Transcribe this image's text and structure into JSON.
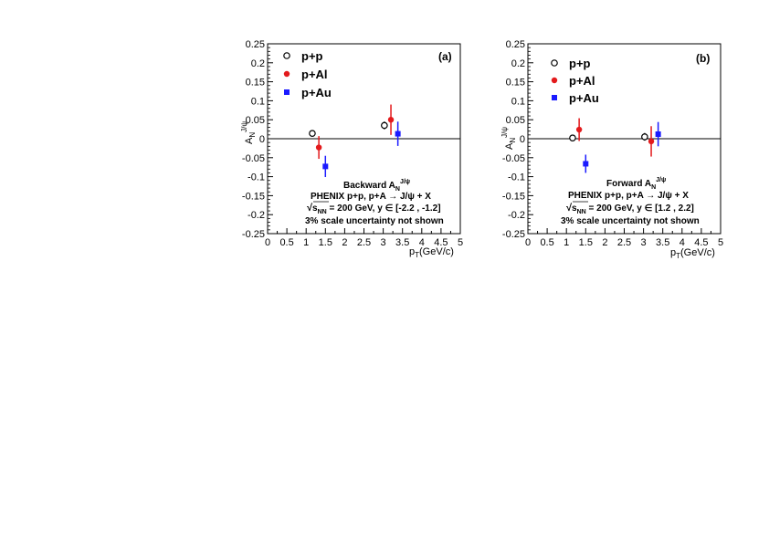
{
  "colors": {
    "pp": "#000000",
    "pAl": "#e31a1c",
    "pAu": "#1a1aff"
  },
  "axis_labels": {
    "x_main": "p",
    "x_sub": "T",
    "x_unit": "(GeV/c)",
    "y_main": "A",
    "y_sub": "N",
    "y_sup": "J/ψ"
  },
  "legend": [
    "p+p",
    "p+Al",
    "p+Au"
  ],
  "panels": [
    {
      "label": "(a)",
      "ann_title": "Backward A",
      "ann_sub": "N",
      "ann_sup": "J/ψ",
      "ann_line2": "PHENIX p+p, p+A → J/ψ + X",
      "ann_sqrt": "s",
      "ann_sqrt_sub": "NN",
      "ann_line3_rest": " = 200 GeV,  y ∈ [-2.2 , -1.2]",
      "ann_line4": "3% scale uncertainty not shown"
    },
    {
      "label": "(b)",
      "ann_title": "Forward A",
      "ann_sub": "N",
      "ann_sup": "J/ψ",
      "ann_line2": "PHENIX p+p, p+A → J/ψ + X",
      "ann_sqrt": "s",
      "ann_sqrt_sub": "NN",
      "ann_line3_rest": " = 200 GeV,  y ∈ [1.2 , 2.2]",
      "ann_line4": "3% scale uncertainty not shown"
    }
  ],
  "chart_data": [
    {
      "type": "scatter",
      "title": "(a)",
      "xlabel": "pT(GeV/c)",
      "ylabel": "AN J/ψ",
      "xlim": [
        0,
        5
      ],
      "ylim": [
        -0.25,
        0.25
      ],
      "xticks": [
        "0",
        "0.5",
        "1",
        "1.5",
        "2",
        "2.5",
        "3",
        "3.5",
        "4",
        "4.5",
        "5"
      ],
      "yticks": [
        "-0.25",
        "-0.2",
        "-0.15",
        "-0.1",
        "-0.05",
        "0",
        "0.05",
        "0.1",
        "0.15",
        "0.2",
        "0.25"
      ],
      "legend_position": "top-left",
      "series": [
        {
          "name": "p+p",
          "marker": "open-circle",
          "points": [
            {
              "x": 1.16,
              "y": 0.014,
              "err": 0.008
            },
            {
              "x": 3.03,
              "y": 0.035,
              "err": 0.01
            }
          ]
        },
        {
          "name": "p+Al",
          "marker": "filled-circle",
          "points": [
            {
              "x": 1.33,
              "y": -0.023,
              "err": 0.03
            },
            {
              "x": 3.2,
              "y": 0.05,
              "err": 0.04
            }
          ]
        },
        {
          "name": "p+Au",
          "marker": "filled-square",
          "points": [
            {
              "x": 1.5,
              "y": -0.073,
              "err": 0.028
            },
            {
              "x": 3.38,
              "y": 0.013,
              "err": 0.032
            }
          ]
        }
      ]
    },
    {
      "type": "scatter",
      "title": "(b)",
      "xlabel": "pT(GeV/c)",
      "ylabel": "AN J/ψ",
      "xlim": [
        0,
        5
      ],
      "ylim": [
        -0.25,
        0.25
      ],
      "xticks": [
        "0",
        "0.5",
        "1",
        "1.5",
        "2",
        "2.5",
        "3",
        "3.5",
        "4",
        "4.5",
        "5"
      ],
      "yticks": [
        "-0.25",
        "-0.2",
        "-0.15",
        "-0.1",
        "-0.05",
        "0",
        "0.05",
        "0.1",
        "0.15",
        "0.2",
        "0.25"
      ],
      "legend_position": "top-left",
      "series": [
        {
          "name": "p+p",
          "marker": "open-circle",
          "points": [
            {
              "x": 1.16,
              "y": 0.002,
              "err": 0.008
            },
            {
              "x": 3.03,
              "y": 0.005,
              "err": 0.01
            }
          ]
        },
        {
          "name": "p+Al",
          "marker": "filled-circle",
          "points": [
            {
              "x": 1.33,
              "y": 0.024,
              "err": 0.03
            },
            {
              "x": 3.2,
              "y": -0.007,
              "err": 0.04
            }
          ]
        },
        {
          "name": "p+Au",
          "marker": "filled-square",
          "points": [
            {
              "x": 1.5,
              "y": -0.066,
              "err": 0.024
            },
            {
              "x": 3.38,
              "y": 0.012,
              "err": 0.032
            }
          ]
        }
      ]
    }
  ]
}
